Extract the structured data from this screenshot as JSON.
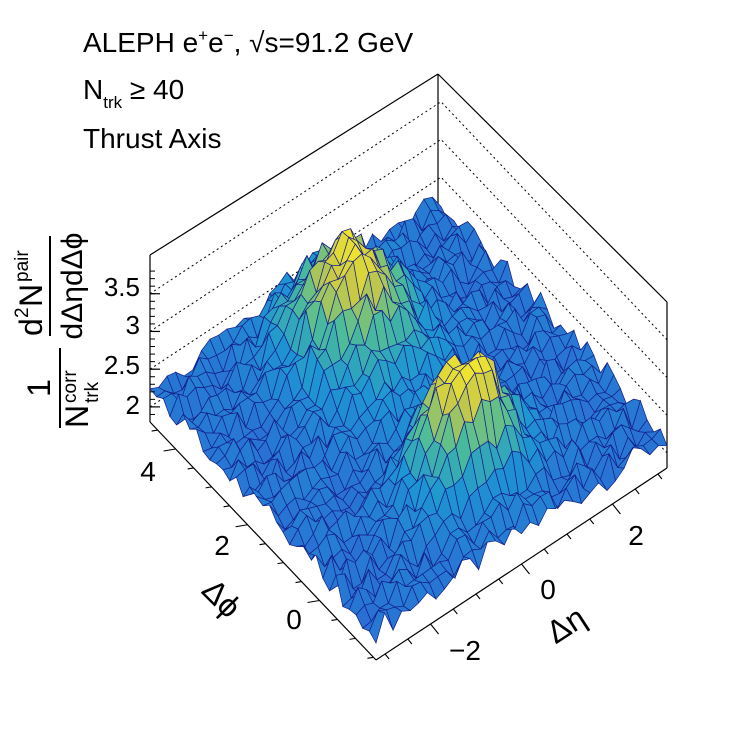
{
  "chart_data": {
    "type": "surface3d",
    "title_lines": {
      "line1_pre": "ALEPH e",
      "line1_sup1": "+",
      "line1_mid": "e",
      "line1_sup2": "−",
      "line1_post": ",  √s=91.2 GeV",
      "line2_main": "N",
      "line2_sub": "trk",
      "line2_post": " ≥ 40",
      "line3": "Thrust Axis"
    },
    "xlabel": "Δη",
    "ylabel": "Δϕ",
    "zlabel": {
      "prefix": "1",
      "norm_main": "N",
      "norm_sup": "corr",
      "norm_sub": "trk",
      "num_pre": "d",
      "num_sup2": "2",
      "num_main": "N",
      "num_sup": "pair",
      "den": "dΔηdΔϕ"
    },
    "x_ticks": [
      "−2",
      "0",
      "2"
    ],
    "y_ticks": [
      "0",
      "2",
      "4"
    ],
    "z_ticks": [
      "2",
      "2.5",
      "3",
      "3.5"
    ],
    "x_range": [
      -3.2,
      3.2
    ],
    "y_range": [
      -1.5708,
      4.7124
    ],
    "z_range": [
      1.8,
      4.0
    ],
    "grid": true,
    "colormap": "kBird (blue to yellow)",
    "peaks": [
      {
        "x": 0.0,
        "y": 0.0,
        "z": 3.75,
        "note": "near-side peak (flat-topped)"
      },
      {
        "x": 0.0,
        "y": 3.14,
        "z": 3.6,
        "note": "away-side peak"
      }
    ],
    "baseline_z": 2.2
  }
}
